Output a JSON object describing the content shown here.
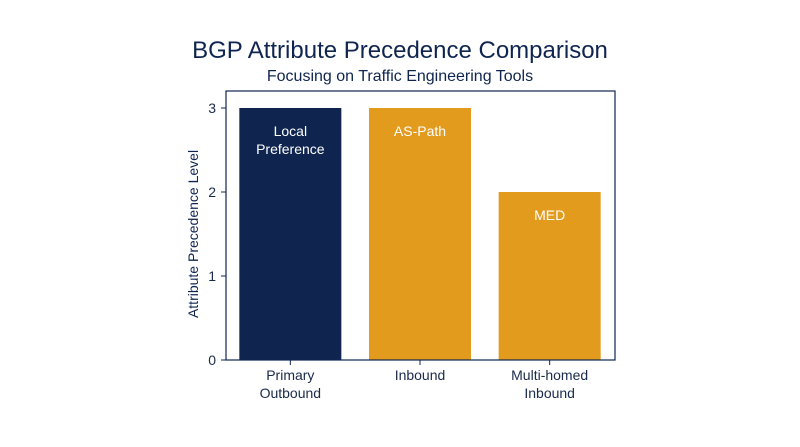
{
  "chart_data": {
    "type": "bar",
    "title": "BGP Attribute Precedence Comparison",
    "subtitle": "Focusing on Traffic Engineering Tools",
    "xlabel": "",
    "ylabel": "Attribute Precedence Level",
    "ylim": [
      0,
      3
    ],
    "yticks": [
      0,
      1,
      2,
      3
    ],
    "grid": false,
    "legend": "none",
    "categories": [
      [
        "Primary",
        "Outbound"
      ],
      [
        "Inbound"
      ],
      [
        "Multi-homed",
        "Inbound"
      ]
    ],
    "values": [
      3,
      3,
      2
    ],
    "bar_labels": [
      [
        "Local",
        "Preference"
      ],
      [
        "AS-Path"
      ],
      [
        "MED"
      ]
    ],
    "colors": [
      "#0f2550",
      "#e39b1e",
      "#e39b1e"
    ]
  }
}
